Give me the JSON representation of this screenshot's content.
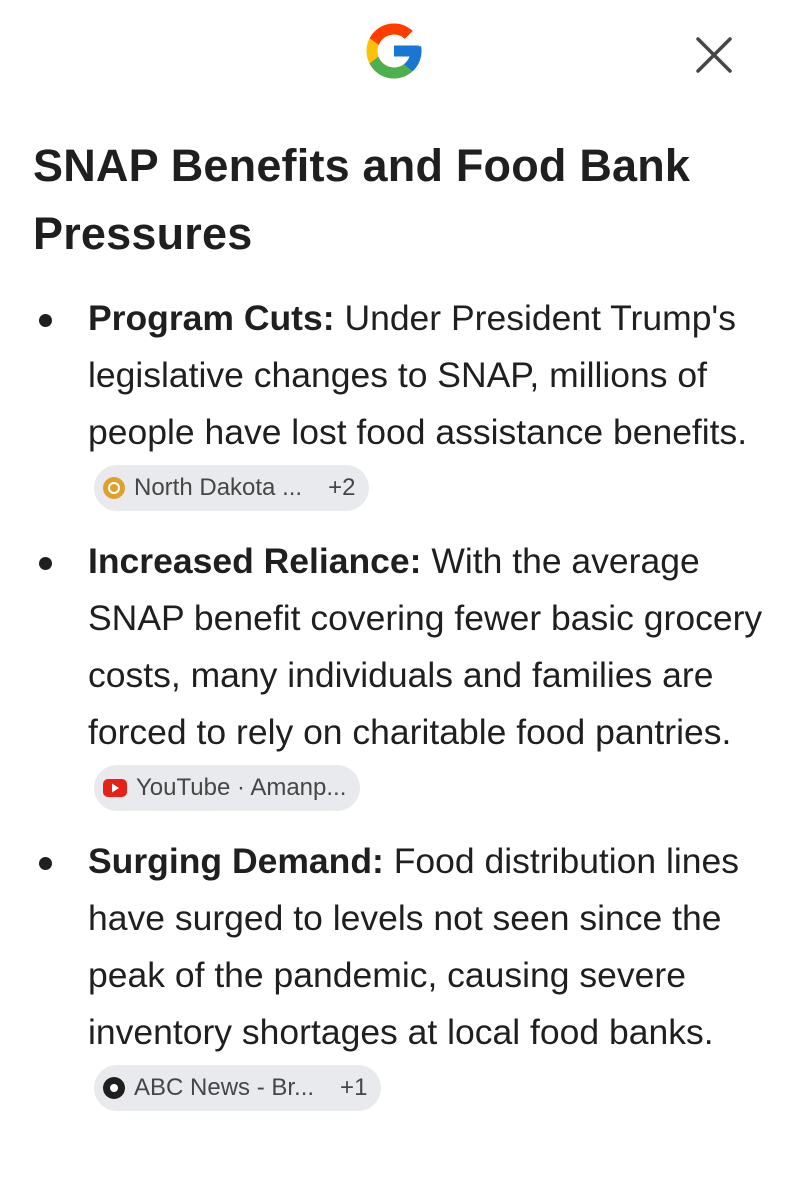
{
  "title": "SNAP Benefits and Food Bank Pressures",
  "items": [
    {
      "label": "Program Cuts:",
      "text": "Under President Trump's legislative changes to SNAP, millions of people have lost food assistance benefits.",
      "source": "North Dakota ...",
      "more": "+2"
    },
    {
      "label": "Increased Reliance:",
      "text": "With the average SNAP benefit covering fewer basic grocery costs, many individuals and families are forced to rely on charitable food pantries.",
      "source": "YouTube · Amanp...",
      "more": null
    },
    {
      "label": "Surging Demand:",
      "text": "Food distribution lines have surged to levels not seen since the peak of the pandemic, causing severe inventory shortages at local food banks.",
      "source": "ABC News - Br...",
      "more": "+1"
    }
  ]
}
